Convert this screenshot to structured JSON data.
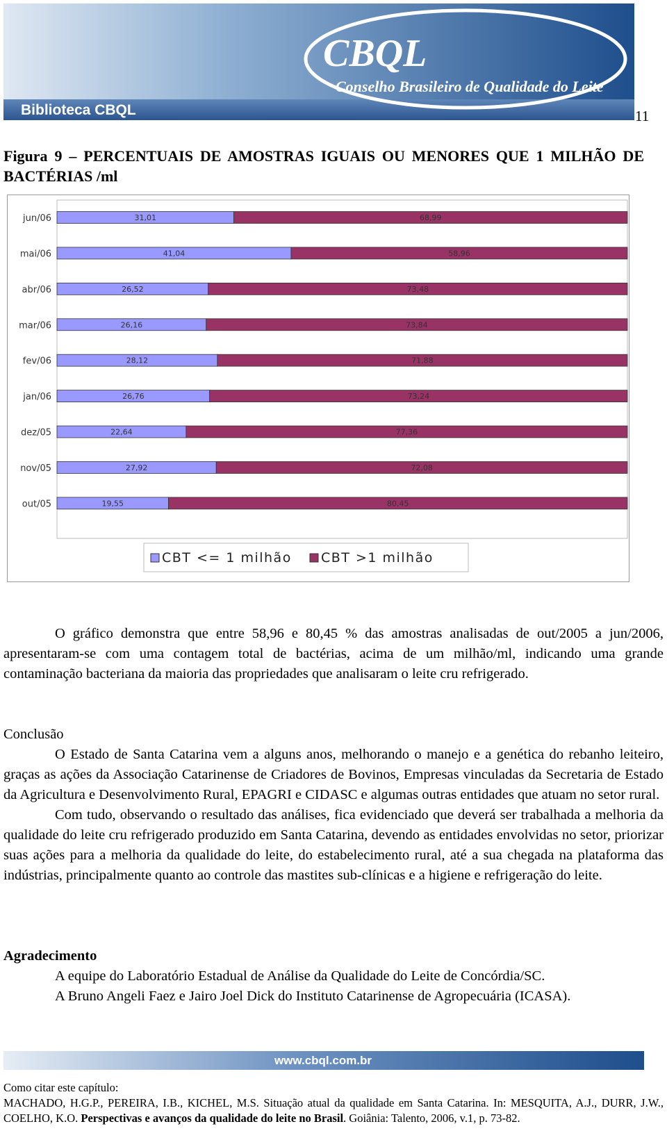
{
  "header": {
    "brand": "Biblioteca CBQL",
    "logo": "CBQL",
    "org": "Conselho Brasileiro de Qualidade do Leite",
    "page_number": "11"
  },
  "figure_caption": "Figura 9 – PERCENTUAIS DE AMOSTRAS IGUAIS OU MENORES QUE 1 MILHÃO DE BACTÉRIAS /ml",
  "chart_data": {
    "type": "stacked-barh",
    "categories": [
      "jun/06",
      "mai/06",
      "abr/06",
      "mar/06",
      "fev/06",
      "jan/06",
      "dez/05",
      "nov/05",
      "out/05"
    ],
    "xlim": [
      0,
      100
    ],
    "series": [
      {
        "name": "CBT <= 1 milhão",
        "color": "#9999ff",
        "values": [
          31.01,
          41.04,
          26.52,
          26.16,
          28.12,
          26.76,
          22.64,
          27.92,
          19.55
        ],
        "value_labels": [
          "31,01",
          "41,04",
          "26,52",
          "26,16",
          "28,12",
          "26,76",
          "22,64",
          "27,92",
          "19,55"
        ]
      },
      {
        "name": "CBT >1 milhão",
        "color": "#993366",
        "values": [
          68.99,
          58.96,
          73.48,
          73.84,
          71.88,
          73.24,
          77.36,
          72.08,
          80.45
        ],
        "value_labels": [
          "68,99",
          "58,96",
          "73,48",
          "73,84",
          "71,88",
          "73,24",
          "77,36",
          "72,08",
          "80,45"
        ]
      }
    ],
    "legend": "bottom"
  },
  "body": {
    "analysis": "O gráfico demonstra que entre 58,96 e 80,45 % das amostras analisadas de out/2005 a jun/2006, apresentaram-se com uma contagem total de bactérias, acima de um milhão/ml, indicando uma grande contaminação bacteriana da maioria das propriedades que analisaram o leite cru refrigerado.",
    "conclusion_heading": "Conclusão",
    "conclusion_paragraphs": [
      "O Estado de Santa Catarina vem a alguns anos, melhorando o manejo e a genética do rebanho leiteiro, graças as ações da Associação Catarinense de Criadores de Bovinos, Empresas vinculadas da Secretaria de Estado da Agricultura e Desenvolvimento Rural, EPAGRI e CIDASC e algumas outras entidades que atuam no setor rural.",
      "Com tudo, observando o resultado das análises, fica evidenciado que deverá ser trabalhada a melhoria da qualidade do leite cru refrigerado produzido em Santa Catarina, devendo as entidades envolvidas no setor, priorizar suas ações para a melhoria da qualidade do leite, do estabelecimento rural, até a sua chegada na plataforma das indústrias, principalmente quanto ao controle das mastites sub-clínicas e a higiene e refrigeração do leite."
    ],
    "acknowledgement_heading": "Agradecimento",
    "acknowledgement_paragraphs": [
      "A equipe do Laboratório Estadual de Análise da Qualidade do Leite de Concórdia/SC.",
      "A Bruno Angeli Faez e Jairo Joel Dick do Instituto Catarinense de Agropecuária (ICASA)."
    ]
  },
  "footer": {
    "url": "www.cbql.com.br",
    "citation_label": "Como citar este capítulo:",
    "citation": [
      "MACHADO, H.G.P., PEREIRA, I.B., KICHEL, M.S. Situação atual da qualidade em Santa Catarina. In: MESQUITA, A.J., DURR, J.W., COELHO, K.O. ",
      "Perspectivas e avanços da qualidade do leite no Brasil",
      ". Goiânia: Talento, 2006, v.1, p. 73-82."
    ]
  }
}
